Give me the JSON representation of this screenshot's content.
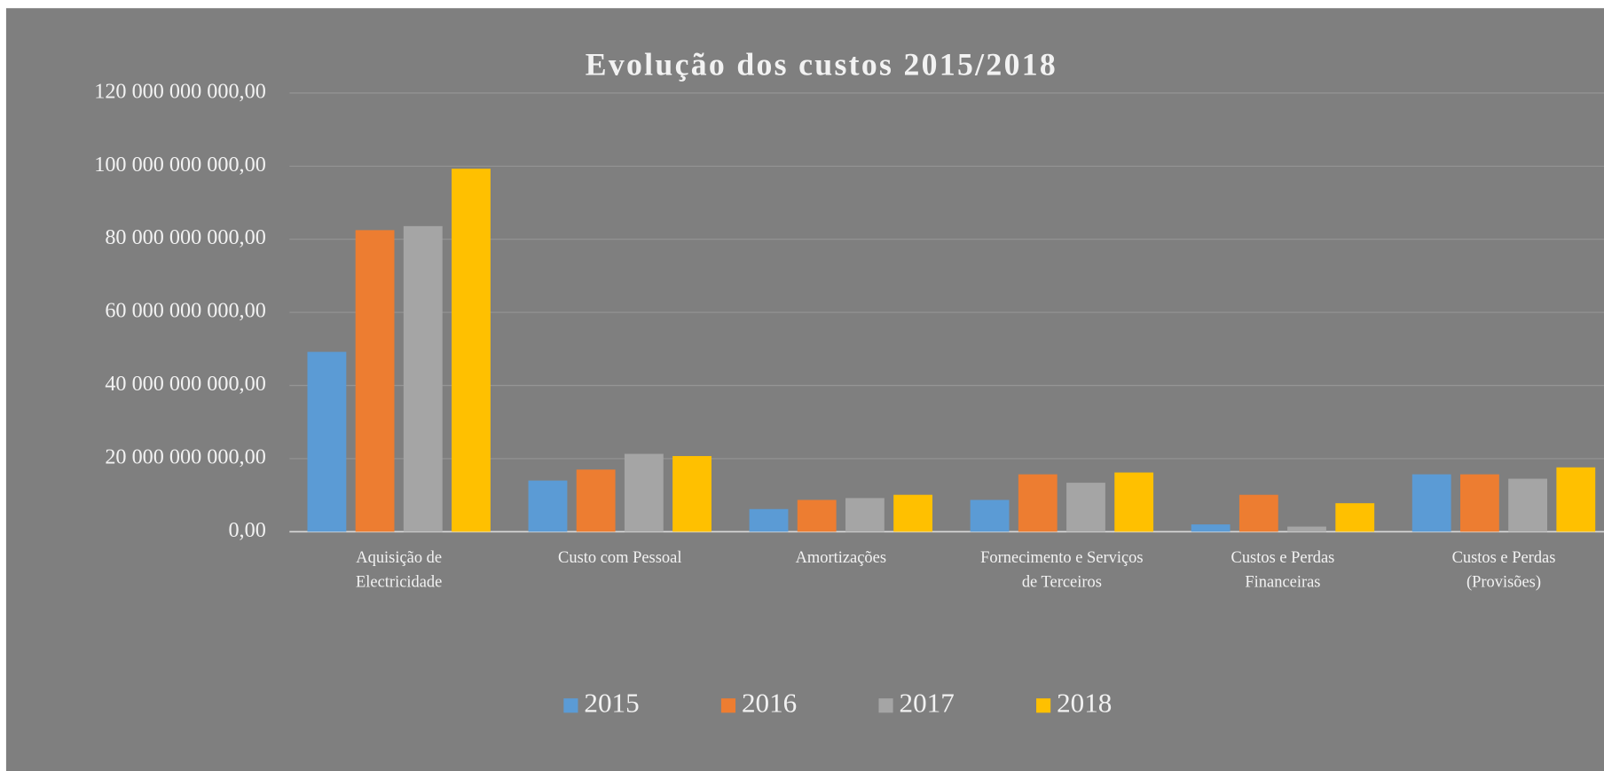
{
  "chart_data": {
    "type": "bar",
    "title": "Evolução dos custos 2015/2018",
    "categories": [
      "Aquisição de\nElectricidade",
      "Custo com Pessoal",
      "Amortizações",
      "Fornecimento e Serviços\nde Terceiros",
      "Custos e Perdas\nFinanceiras",
      "Custos e Perdas\n(Provisões)"
    ],
    "series": [
      {
        "name": "2015",
        "color": "#5b9bd5",
        "values": [
          49200000000,
          14000000000,
          6200000000,
          8700000000,
          2000000000,
          15700000000
        ]
      },
      {
        "name": "2016",
        "color": "#ed7d31",
        "values": [
          82500000000,
          17000000000,
          8700000000,
          15700000000,
          10100000000,
          15700000000
        ]
      },
      {
        "name": "2017",
        "color": "#a5a5a5",
        "values": [
          83600000000,
          21300000000,
          9200000000,
          13400000000,
          1400000000,
          14500000000
        ]
      },
      {
        "name": "2018",
        "color": "#ffc000",
        "values": [
          99300000000,
          20700000000,
          10100000000,
          16200000000,
          7800000000,
          17600000000
        ]
      }
    ],
    "ylim": [
      0,
      120000000000
    ],
    "yticks": [
      {
        "value": 0,
        "label": "0,00"
      },
      {
        "value": 20000000000,
        "label": "20 000 000 000,00"
      },
      {
        "value": 40000000000,
        "label": "40 000 000 000,00"
      },
      {
        "value": 60000000000,
        "label": "60 000 000 000,00"
      },
      {
        "value": 80000000000,
        "label": "80 000 000 000,00"
      },
      {
        "value": 100000000000,
        "label": "100 000 000 000,00"
      },
      {
        "value": 120000000000,
        "label": "120 000 000 000,00"
      }
    ],
    "grid": true,
    "legend": "bottom"
  }
}
